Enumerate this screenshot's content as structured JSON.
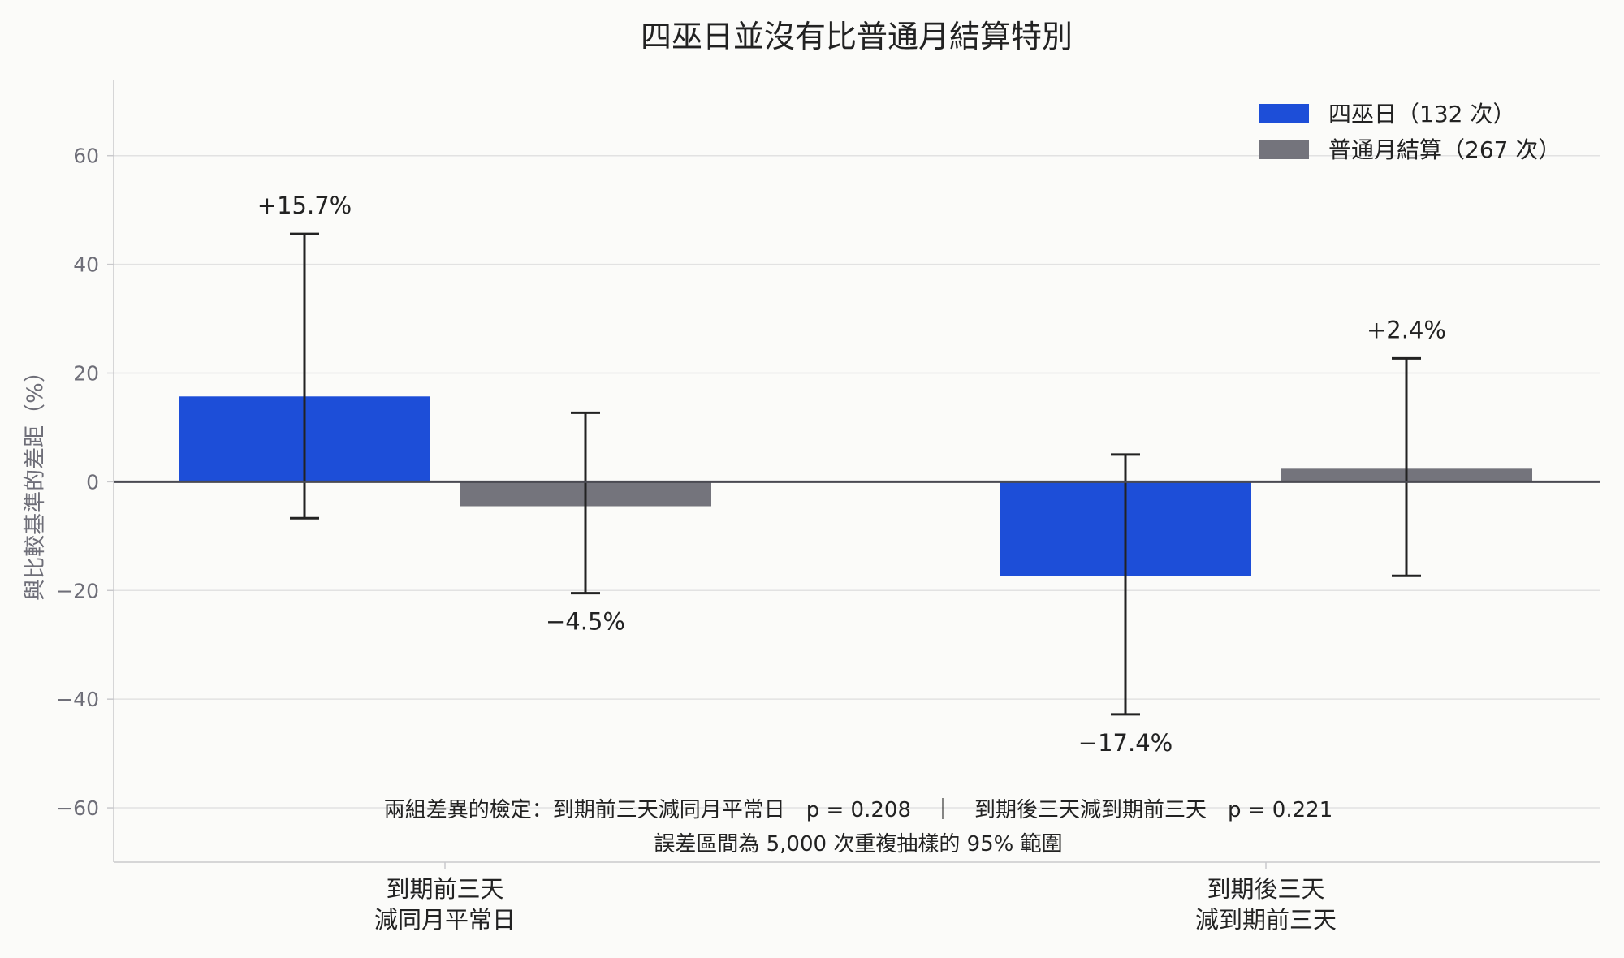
{
  "chart_data": {
    "type": "bar",
    "title": "四巫日並沒有比普通月結算特別",
    "ylabel": "與比較基準的差距（%）",
    "xlabel": "",
    "ylim": [
      -70,
      74
    ],
    "yticks": [
      -60,
      -40,
      -20,
      0,
      20,
      40,
      60
    ],
    "ytick_labels": [
      "−60",
      "−40",
      "−20",
      "0",
      "20",
      "40",
      "60"
    ],
    "categories": [
      [
        "到期前三天",
        "減同月平常日"
      ],
      [
        "到期後三天",
        "減到期前三天"
      ]
    ],
    "series": [
      {
        "name": "四巫日（132 次）",
        "color": "#1d4ed8",
        "values": [
          15.7,
          -17.4
        ],
        "err_low": [
          -6.7,
          -42.8
        ],
        "err_high": [
          45.6,
          5.0
        ],
        "labels": [
          "+15.7%",
          "−17.4%"
        ]
      },
      {
        "name": "普通月結算（267 次）",
        "color": "#74747c",
        "values": [
          -4.5,
          2.4
        ],
        "err_low": [
          -20.5,
          -17.3
        ],
        "err_high": [
          12.7,
          22.7
        ],
        "labels": [
          "−4.5%",
          "+2.4%"
        ]
      }
    ],
    "grid": "horizontal",
    "legend_position": "top-right",
    "annotations": [
      "兩組差異的檢定：到期前三天減同月平常日　p = 0.208　｜　到期後三天減到期前三天　p = 0.221",
      "誤差區間為 5,000 次重複抽樣的 95% 範圍"
    ]
  }
}
